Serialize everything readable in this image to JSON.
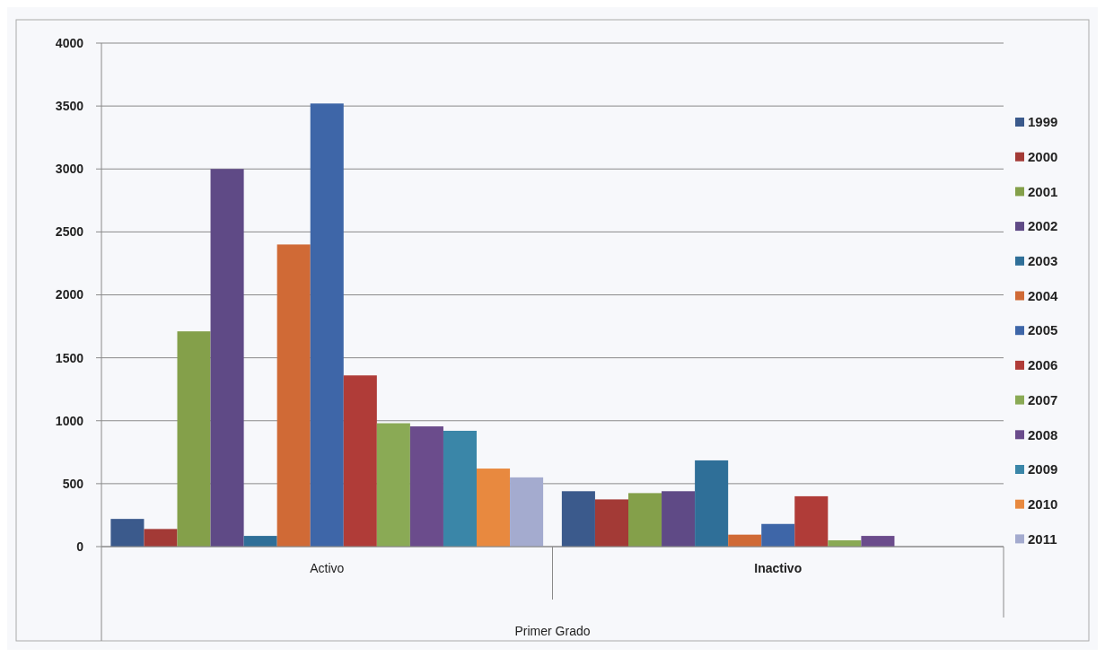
{
  "chart_data": {
    "type": "bar",
    "xlabel": "Primer Grado",
    "categories": [
      "Activo",
      "Inactivo"
    ],
    "series": [
      {
        "name": "1999",
        "color": "#3b5a8c",
        "values": [
          220,
          440
        ]
      },
      {
        "name": "2000",
        "color": "#a33a36",
        "values": [
          140,
          375
        ]
      },
      {
        "name": "2001",
        "color": "#84a04a",
        "values": [
          1710,
          425
        ]
      },
      {
        "name": "2002",
        "color": "#5f4a86",
        "values": [
          3000,
          440
        ]
      },
      {
        "name": "2003",
        "color": "#2f6f98",
        "values": [
          85,
          685
        ]
      },
      {
        "name": "2004",
        "color": "#d06a36",
        "values": [
          2400,
          95
        ]
      },
      {
        "name": "2005",
        "color": "#3e66a8",
        "values": [
          3520,
          180
        ]
      },
      {
        "name": "2006",
        "color": "#b03c38",
        "values": [
          1360,
          400
        ]
      },
      {
        "name": "2007",
        "color": "#8aaa55",
        "values": [
          980,
          50
        ]
      },
      {
        "name": "2008",
        "color": "#6b4c8c",
        "values": [
          955,
          85
        ]
      },
      {
        "name": "2009",
        "color": "#3a86a8",
        "values": [
          920,
          null
        ]
      },
      {
        "name": "2010",
        "color": "#e8893f",
        "values": [
          620,
          null
        ]
      },
      {
        "name": "2011",
        "color": "#a4abcf",
        "values": [
          550,
          null
        ]
      }
    ],
    "ylim": [
      0,
      4000
    ],
    "yticks": [
      0,
      500,
      1000,
      1500,
      2000,
      2500,
      3000,
      3500,
      4000
    ],
    "grid": "y",
    "legend": "right"
  }
}
